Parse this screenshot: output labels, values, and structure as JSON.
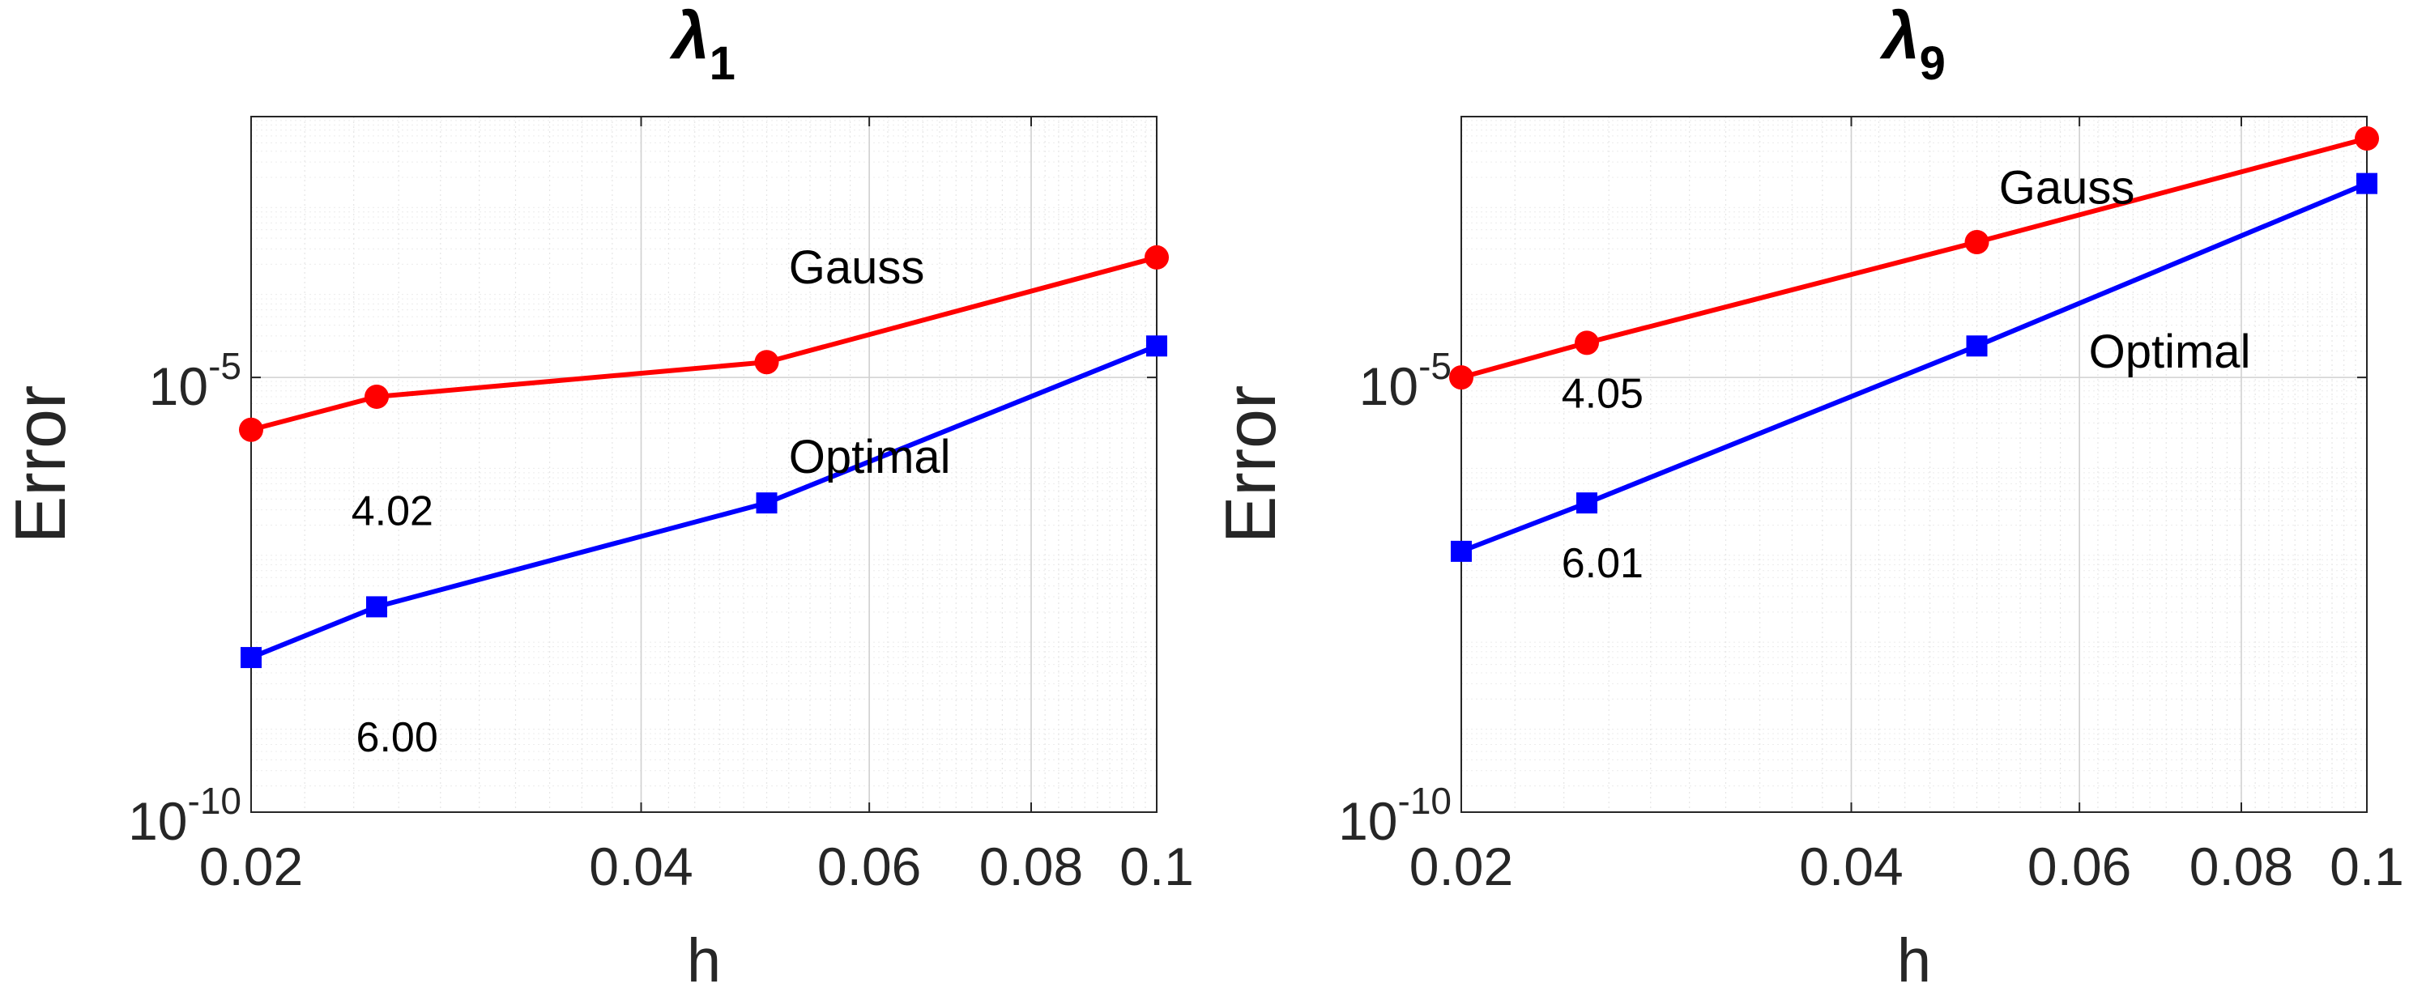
{
  "chart_data": [
    {
      "type": "line",
      "title": "λ",
      "title_subscript": "1",
      "xlabel": "h",
      "ylabel": "Error",
      "x_scale": "log",
      "y_scale": "log",
      "xlim": [
        0.02,
        0.1
      ],
      "ylim": [
        1e-10,
        0.01
      ],
      "grid": true,
      "x_ticks": [
        {
          "value": 0.02,
          "label": "0.02"
        },
        {
          "value": 0.04,
          "label": "0.04"
        },
        {
          "value": 0.06,
          "label": "0.06"
        },
        {
          "value": 0.08,
          "label": "0.08"
        },
        {
          "value": 0.1,
          "label": "0.1"
        }
      ],
      "y_ticks": [
        {
          "value": 1e-05,
          "base": "10",
          "exp": "-5"
        },
        {
          "value": 1e-10,
          "base": "10",
          "exp": "-10"
        }
      ],
      "series": [
        {
          "name": "Gauss",
          "color": "#ff0000",
          "marker": "circle",
          "x": [
            0.02,
            0.025,
            0.05,
            0.1
          ],
          "y": [
            2.5e-06,
            6e-06,
            1.5e-05,
            0.00024
          ]
        },
        {
          "name": "Optimal",
          "color": "#0000ff",
          "marker": "square",
          "x": [
            0.02,
            0.025,
            0.05,
            0.1
          ],
          "y": [
            6e-09,
            2.3e-08,
            3.6e-07,
            2.3e-05
          ]
        }
      ],
      "annotations": [
        {
          "text": "Gauss",
          "x": 0.052,
          "y": 0.00012
        },
        {
          "text": "Optimal",
          "x": 0.052,
          "y": 8e-07
        },
        {
          "text": "4.02",
          "x": 0.0239,
          "y": 2e-07
        },
        {
          "text": "6.00",
          "x": 0.0241,
          "y": 5e-10
        }
      ]
    },
    {
      "type": "line",
      "title": "λ",
      "title_subscript": "9",
      "xlabel": "h",
      "ylabel": "Error",
      "x_scale": "log",
      "y_scale": "log",
      "xlim": [
        0.02,
        0.1
      ],
      "ylim": [
        1e-10,
        0.01
      ],
      "grid": true,
      "x_ticks": [
        {
          "value": 0.02,
          "label": "0.02"
        },
        {
          "value": 0.04,
          "label": "0.04"
        },
        {
          "value": 0.06,
          "label": "0.06"
        },
        {
          "value": 0.08,
          "label": "0.08"
        },
        {
          "value": 0.1,
          "label": "0.1"
        }
      ],
      "y_ticks": [
        {
          "value": 1e-05,
          "base": "10",
          "exp": "-5"
        },
        {
          "value": 1e-10,
          "base": "10",
          "exp": "-10"
        }
      ],
      "series": [
        {
          "name": "Gauss",
          "color": "#ff0000",
          "marker": "circle",
          "x": [
            0.02,
            0.025,
            0.05,
            0.1
          ],
          "y": [
            1e-05,
            2.5e-05,
            0.00036,
            0.0056
          ]
        },
        {
          "name": "Optimal",
          "color": "#0000ff",
          "marker": "square",
          "x": [
            0.02,
            0.025,
            0.05,
            0.1
          ],
          "y": [
            1e-07,
            3.6e-07,
            2.3e-05,
            0.0017
          ]
        }
      ],
      "annotations": [
        {
          "text": "Gauss",
          "x": 0.052,
          "y": 0.001
        },
        {
          "text": "Optimal",
          "x": 0.061,
          "y": 1.3e-05
        },
        {
          "text": "4.05",
          "x": 0.0239,
          "y": 4.5e-06
        },
        {
          "text": "6.01",
          "x": 0.0239,
          "y": 5e-08
        }
      ]
    }
  ]
}
